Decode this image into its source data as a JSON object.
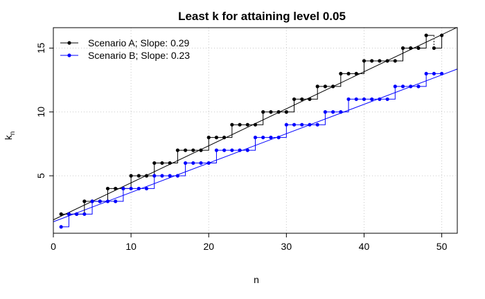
{
  "chart_data": {
    "type": "line",
    "title": "Least k for attaining level 0.05",
    "xlabel": "n",
    "ylabel_main": "k",
    "ylabel_sub": "n",
    "xlim": [
      0,
      52
    ],
    "ylim": [
      0.5,
      16.6
    ],
    "xticks": [
      0,
      10,
      20,
      30,
      40,
      50
    ],
    "yticks": [
      5,
      10,
      15
    ],
    "grid": true,
    "legend": {
      "position": "top-left",
      "entries": [
        "Scenario A; Slope: 0.29",
        "Scenario B; Slope: 0.23"
      ]
    },
    "x": [
      1,
      2,
      3,
      4,
      5,
      6,
      7,
      8,
      9,
      10,
      11,
      12,
      13,
      14,
      15,
      16,
      17,
      18,
      19,
      20,
      21,
      22,
      23,
      24,
      25,
      26,
      27,
      28,
      29,
      30,
      31,
      32,
      33,
      34,
      35,
      36,
      37,
      38,
      39,
      40,
      41,
      42,
      43,
      44,
      45,
      46,
      47,
      48,
      49,
      50
    ],
    "series": [
      {
        "name": "Scenario A; Slope: 0.29",
        "color": "#000000",
        "values": [
          2,
          2,
          2,
          3,
          3,
          3,
          4,
          4,
          4,
          5,
          5,
          5,
          6,
          6,
          6,
          7,
          7,
          7,
          7,
          8,
          8,
          8,
          9,
          9,
          9,
          9,
          10,
          10,
          10,
          10,
          11,
          11,
          11,
          12,
          12,
          12,
          13,
          13,
          13,
          14,
          14,
          14,
          14,
          14,
          15,
          15,
          15,
          16,
          15,
          16
        ],
        "fit": {
          "intercept": 1.55,
          "slope": 0.29
        }
      },
      {
        "name": "Scenario B; Slope: 0.23",
        "color": "#0000ff",
        "values": [
          1,
          2,
          2,
          2,
          3,
          3,
          3,
          3,
          4,
          4,
          4,
          4,
          5,
          5,
          5,
          5,
          6,
          6,
          6,
          6,
          7,
          7,
          7,
          7,
          7,
          8,
          8,
          8,
          8,
          9,
          9,
          9,
          9,
          9,
          10,
          10,
          10,
          11,
          11,
          11,
          11,
          11,
          11,
          12,
          12,
          12,
          12,
          13,
          13,
          13
        ],
        "fit": {
          "intercept": 1.4,
          "slope": 0.23
        }
      }
    ]
  }
}
